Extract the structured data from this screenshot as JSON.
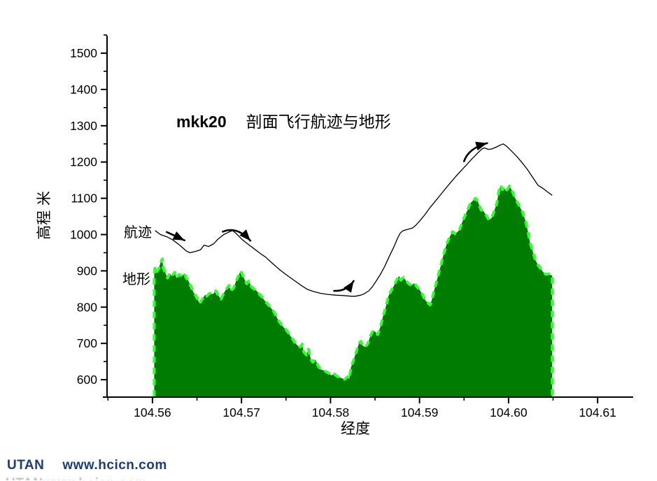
{
  "title": {
    "run_id": "mkk20",
    "text": "剖面飞行航迹与地形"
  },
  "axis_labels": {
    "y": "高程 米",
    "x": "经度"
  },
  "series_labels": {
    "track": "航迹",
    "terrain": "地形"
  },
  "footer": {
    "brand": "UTAN",
    "url": "www.hcicn.com"
  },
  "colors": {
    "terrain_fill": "#007c00",
    "terrain_edge": "#33ff33",
    "track_line": "#000000",
    "axis": "#000000",
    "footer_text": "#1c3e70"
  },
  "chart_data": {
    "type": "area",
    "title": "mkk20 剖面飞行航迹与地形",
    "xlabel": "经度",
    "ylabel": "高程 米",
    "xlim": [
      104.5549,
      104.614
    ],
    "ylim": [
      552,
      1556
    ],
    "grid": false,
    "x_ticks": [
      {
        "v": 104.56,
        "label": "104.56"
      },
      {
        "v": 104.57,
        "label": "104.57"
      },
      {
        "v": 104.58,
        "label": "104.58"
      },
      {
        "v": 104.59,
        "label": "104.59"
      },
      {
        "v": 104.6,
        "label": "104.60"
      },
      {
        "v": 104.61,
        "label": "104.61"
      }
    ],
    "x_minor": [
      104.555,
      104.565,
      104.575,
      104.585,
      104.595,
      104.605
    ],
    "y_ticks": [
      600,
      700,
      800,
      900,
      1000,
      1100,
      1200,
      1300,
      1400,
      1500
    ],
    "y_minor": [
      650,
      750,
      850,
      950,
      1050,
      1150,
      1250,
      1350,
      1450,
      1550
    ],
    "series": [
      {
        "name": "地形",
        "type": "area",
        "points": [
          [
            104.5602,
            889
          ],
          [
            104.5603,
            912
          ],
          [
            104.5605,
            898
          ],
          [
            104.5607,
            905
          ],
          [
            104.5609,
            922
          ],
          [
            104.5611,
            933
          ],
          [
            104.5612,
            908
          ],
          [
            104.5614,
            898
          ],
          [
            104.5617,
            880
          ],
          [
            104.5619,
            893
          ],
          [
            104.5622,
            886
          ],
          [
            104.5625,
            896
          ],
          [
            104.5627,
            880
          ],
          [
            104.563,
            890
          ],
          [
            104.5633,
            885
          ],
          [
            104.5636,
            893
          ],
          [
            104.5638,
            880
          ],
          [
            104.564,
            874
          ],
          [
            104.5643,
            858
          ],
          [
            104.5646,
            841
          ],
          [
            104.5649,
            830
          ],
          [
            104.5652,
            815
          ],
          [
            104.5653,
            810
          ],
          [
            104.5656,
            822
          ],
          [
            104.5659,
            834
          ],
          [
            104.5661,
            830
          ],
          [
            104.5664,
            838
          ],
          [
            104.5668,
            836
          ],
          [
            104.5671,
            845
          ],
          [
            104.5674,
            832
          ],
          [
            104.5677,
            822
          ],
          [
            104.568,
            838
          ],
          [
            104.5683,
            850
          ],
          [
            104.5686,
            860
          ],
          [
            104.5688,
            845
          ],
          [
            104.5691,
            852
          ],
          [
            104.5694,
            872
          ],
          [
            104.5699,
            900
          ],
          [
            104.5701,
            890
          ],
          [
            104.5703,
            878
          ],
          [
            104.5706,
            864
          ],
          [
            104.5708,
            872
          ],
          [
            104.5711,
            856
          ],
          [
            104.5714,
            850
          ],
          [
            104.5717,
            845
          ],
          [
            104.572,
            836
          ],
          [
            104.5723,
            828
          ],
          [
            104.5726,
            818
          ],
          [
            104.5729,
            810
          ],
          [
            104.5732,
            800
          ],
          [
            104.5735,
            792
          ],
          [
            104.5738,
            780
          ],
          [
            104.5741,
            765
          ],
          [
            104.5744,
            755
          ],
          [
            104.5747,
            745
          ],
          [
            104.575,
            738
          ],
          [
            104.5753,
            728
          ],
          [
            104.5755,
            720
          ],
          [
            104.5758,
            710
          ],
          [
            104.576,
            702
          ],
          [
            104.5763,
            694
          ],
          [
            104.5766,
            690
          ],
          [
            104.5768,
            698
          ],
          [
            104.577,
            676
          ],
          [
            104.5773,
            668
          ],
          [
            104.5775,
            684
          ],
          [
            104.5778,
            656
          ],
          [
            104.578,
            648
          ],
          [
            104.5783,
            655
          ],
          [
            104.5786,
            638
          ],
          [
            104.5789,
            628
          ],
          [
            104.5792,
            626
          ],
          [
            104.5795,
            622
          ],
          [
            104.5798,
            618
          ],
          [
            104.5801,
            612
          ],
          [
            104.5804,
            616
          ],
          [
            104.5807,
            610
          ],
          [
            104.581,
            606
          ],
          [
            104.5813,
            604
          ],
          [
            104.5816,
            601
          ],
          [
            104.5819,
            608
          ],
          [
            104.5821,
            602
          ],
          [
            104.5823,
            634
          ],
          [
            104.5826,
            655
          ],
          [
            104.5829,
            678
          ],
          [
            104.5832,
            700
          ],
          [
            104.5834,
            706
          ],
          [
            104.5836,
            694
          ],
          [
            104.5839,
            690
          ],
          [
            104.5842,
            700
          ],
          [
            104.5845,
            722
          ],
          [
            104.5848,
            736
          ],
          [
            104.5851,
            730
          ],
          [
            104.5853,
            724
          ],
          [
            104.5856,
            745
          ],
          [
            104.5859,
            775
          ],
          [
            104.5862,
            800
          ],
          [
            104.5865,
            830
          ],
          [
            104.5868,
            845
          ],
          [
            104.5871,
            858
          ],
          [
            104.5875,
            878
          ],
          [
            104.5877,
            886
          ],
          [
            104.5879,
            874
          ],
          [
            104.5882,
            882
          ],
          [
            104.5885,
            872
          ],
          [
            104.5888,
            864
          ],
          [
            104.5891,
            860
          ],
          [
            104.5894,
            866
          ],
          [
            104.5897,
            856
          ],
          [
            104.59,
            848
          ],
          [
            104.5903,
            836
          ],
          [
            104.5906,
            820
          ],
          [
            104.591,
            810
          ],
          [
            104.5912,
            806
          ],
          [
            104.5914,
            822
          ],
          [
            104.5917,
            852
          ],
          [
            104.5919,
            870
          ],
          [
            104.5921,
            888
          ],
          [
            104.5924,
            916
          ],
          [
            104.5926,
            936
          ],
          [
            104.5929,
            962
          ],
          [
            104.5931,
            978
          ],
          [
            104.5934,
            994
          ],
          [
            104.5937,
            1008
          ],
          [
            104.594,
            1002
          ],
          [
            104.5943,
            1008
          ],
          [
            104.5945,
            1014
          ],
          [
            104.5948,
            1035
          ],
          [
            104.5951,
            1052
          ],
          [
            104.5954,
            1068
          ],
          [
            104.5957,
            1086
          ],
          [
            104.596,
            1094
          ],
          [
            104.5963,
            1100
          ],
          [
            104.5966,
            1088
          ],
          [
            104.5969,
            1068
          ],
          [
            104.5972,
            1064
          ],
          [
            104.5975,
            1052
          ],
          [
            104.5978,
            1040
          ],
          [
            104.5981,
            1046
          ],
          [
            104.5984,
            1066
          ],
          [
            104.5987,
            1088
          ],
          [
            104.5989,
            1120
          ],
          [
            104.5991,
            1136
          ],
          [
            104.5993,
            1124
          ],
          [
            104.5995,
            1130
          ],
          [
            104.5997,
            1120
          ],
          [
            104.5999,
            1126
          ],
          [
            104.6001,
            1134
          ],
          [
            104.6004,
            1120
          ],
          [
            104.6007,
            1102
          ],
          [
            104.601,
            1088
          ],
          [
            104.6013,
            1075
          ],
          [
            104.6016,
            1060
          ],
          [
            104.6019,
            1038
          ],
          [
            104.6022,
            1005
          ],
          [
            104.6024,
            978
          ],
          [
            104.6027,
            955
          ],
          [
            104.603,
            930
          ],
          [
            104.6033,
            916
          ],
          [
            104.6036,
            906
          ],
          [
            104.6039,
            896
          ],
          [
            104.6042,
            890
          ],
          [
            104.6045,
            892
          ],
          [
            104.6047,
            888
          ],
          [
            104.6049,
            888
          ]
        ]
      },
      {
        "name": "航迹",
        "type": "line",
        "points": [
          [
            104.5603,
            1011
          ],
          [
            104.5609,
            1000
          ],
          [
            104.5616,
            994
          ],
          [
            104.5623,
            985
          ],
          [
            104.563,
            972
          ],
          [
            104.5638,
            955
          ],
          [
            104.5642,
            950
          ],
          [
            104.5649,
            954
          ],
          [
            104.5654,
            958
          ],
          [
            104.5658,
            971
          ],
          [
            104.5663,
            967
          ],
          [
            104.5669,
            975
          ],
          [
            104.5673,
            986
          ],
          [
            104.568,
            1000
          ],
          [
            104.5686,
            1007
          ],
          [
            104.569,
            1011
          ],
          [
            104.5694,
            1003
          ],
          [
            104.57,
            988
          ],
          [
            104.5706,
            976
          ],
          [
            104.5713,
            963
          ],
          [
            104.572,
            950
          ],
          [
            104.5727,
            938
          ],
          [
            104.5735,
            920
          ],
          [
            104.5743,
            903
          ],
          [
            104.5751,
            888
          ],
          [
            104.5759,
            874
          ],
          [
            104.5767,
            860
          ],
          [
            104.5774,
            849
          ],
          [
            104.5781,
            843
          ],
          [
            104.5789,
            838
          ],
          [
            104.5797,
            835
          ],
          [
            104.5806,
            833
          ],
          [
            104.5814,
            832
          ],
          [
            104.5823,
            830
          ],
          [
            104.5828,
            830
          ],
          [
            104.5834,
            833
          ],
          [
            104.5838,
            837
          ],
          [
            104.5843,
            845
          ],
          [
            104.5847,
            856
          ],
          [
            104.5851,
            871
          ],
          [
            104.5856,
            890
          ],
          [
            104.5861,
            913
          ],
          [
            104.5866,
            940
          ],
          [
            104.5871,
            965
          ],
          [
            104.5875,
            988
          ],
          [
            104.5878,
            1003
          ],
          [
            104.5881,
            1010
          ],
          [
            104.5886,
            1014
          ],
          [
            104.5892,
            1018
          ],
          [
            104.5896,
            1026
          ],
          [
            104.5901,
            1040
          ],
          [
            104.5906,
            1055
          ],
          [
            104.5911,
            1072
          ],
          [
            104.5917,
            1090
          ],
          [
            104.5923,
            1108
          ],
          [
            104.5929,
            1126
          ],
          [
            104.5935,
            1144
          ],
          [
            104.5941,
            1161
          ],
          [
            104.5947,
            1177
          ],
          [
            104.5953,
            1193
          ],
          [
            104.5959,
            1209
          ],
          [
            104.5965,
            1224
          ],
          [
            104.597,
            1236
          ],
          [
            104.5973,
            1239
          ],
          [
            104.5977,
            1235
          ],
          [
            104.5981,
            1236
          ],
          [
            104.5986,
            1241
          ],
          [
            104.5991,
            1247
          ],
          [
            104.5994,
            1250
          ],
          [
            104.5998,
            1243
          ],
          [
            104.6003,
            1231
          ],
          [
            104.6009,
            1216
          ],
          [
            104.6015,
            1199
          ],
          [
            104.6021,
            1180
          ],
          [
            104.6027,
            1158
          ],
          [
            104.6033,
            1136
          ],
          [
            104.604,
            1125
          ],
          [
            104.6044,
            1117
          ],
          [
            104.6048,
            1110
          ],
          [
            104.6049,
            1108
          ]
        ]
      }
    ],
    "arrows": [
      {
        "from": [
          104.5616,
          1007
        ],
        "ctrl": [
          104.5626,
          996
        ],
        "to": [
          104.5636,
          984
        ]
      },
      {
        "from": [
          104.5679,
          1008
        ],
        "ctrl": [
          104.5695,
          1024
        ],
        "to": [
          104.571,
          983
        ]
      },
      {
        "from": [
          104.5804,
          845
        ],
        "ctrl": [
          104.5818,
          843
        ],
        "to": [
          104.5826,
          872
        ]
      },
      {
        "from": [
          104.595,
          1202
        ],
        "ctrl": [
          104.5955,
          1238
        ],
        "to": [
          104.5976,
          1252
        ]
      }
    ]
  }
}
